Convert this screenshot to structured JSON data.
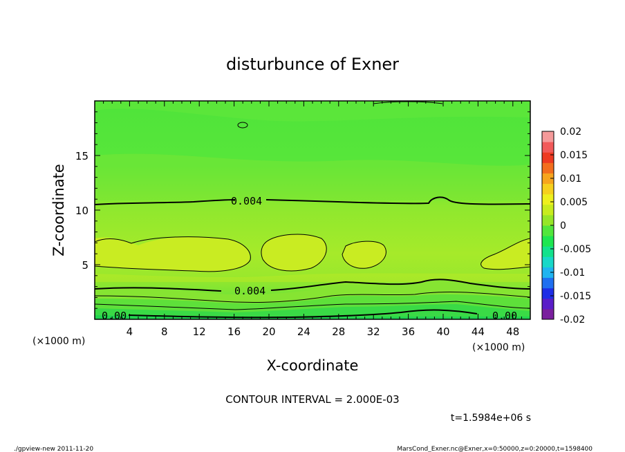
{
  "chart_data": {
    "type": "heatmap",
    "title": "disturbunce of Exner",
    "xlabel": "X-coordinate",
    "ylabel": "Z-coordinate",
    "x_unit": "(×1000 m)",
    "y_unit": "(×1000 m)",
    "xlim": [
      0,
      50
    ],
    "ylim": [
      0,
      20
    ],
    "x_ticks": [
      "4",
      "8",
      "12",
      "16",
      "20",
      "24",
      "28",
      "32",
      "36",
      "40",
      "44",
      "48"
    ],
    "y_ticks": [
      "5",
      "10",
      "15"
    ],
    "colorbar": {
      "range": [
        -0.02,
        0.02
      ],
      "labels": [
        "0.02",
        "0.015",
        "0.01",
        "0.005",
        "0",
        "-0.005",
        "-0.01",
        "-0.015",
        "-0.02"
      ],
      "colors": [
        "#7a1f9e",
        "#5a1ec8",
        "#1e2ee6",
        "#1f6ff0",
        "#20b4f0",
        "#19d8c8",
        "#13e28c",
        "#1ee650",
        "#52e63c",
        "#96e628",
        "#c8ec1e",
        "#eef01e",
        "#f6d01e",
        "#f7a51e",
        "#f36e1e",
        "#ee3a22",
        "#f25a5a",
        "#f59a9a"
      ]
    },
    "contour_labels": [
      "0.004",
      "0.004",
      "0.00",
      "0.00"
    ],
    "contour_interval_text": "CONTOUR INTERVAL = 2.000E-03",
    "time_text": "t=1.5984e+06 s"
  },
  "footer": {
    "left": "./gpview-new   2011-11-20",
    "right": "MarsCond_Exner.nc@Exner,x=0:50000,z=0:20000,t=1598400"
  }
}
